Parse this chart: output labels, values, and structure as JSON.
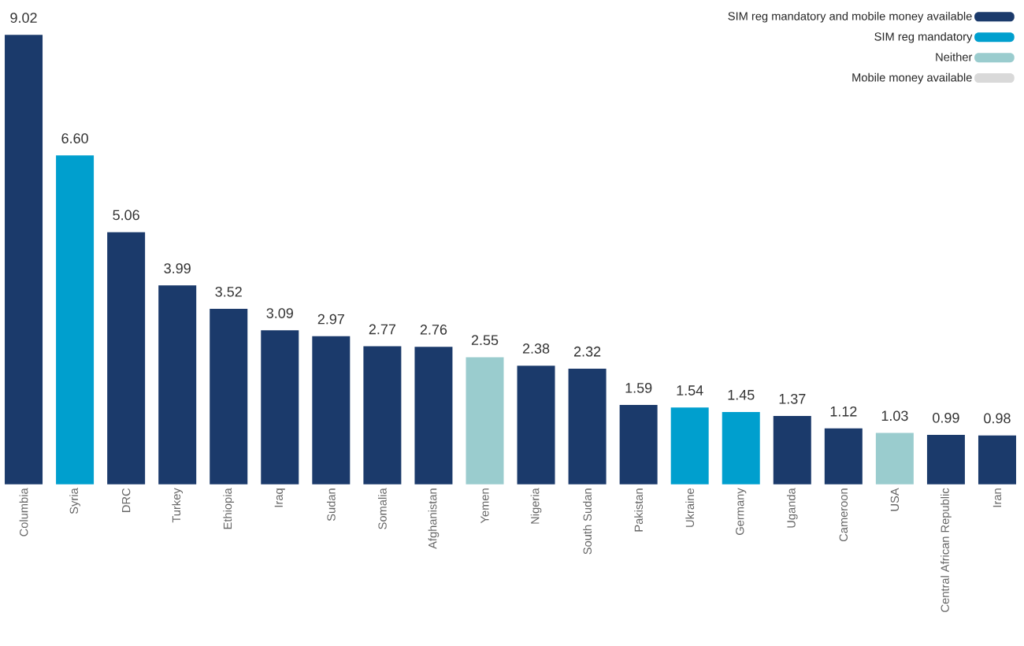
{
  "chart_data": {
    "type": "bar",
    "legend": "top right",
    "data_labels": true,
    "categories": [
      "Columbia",
      "Syria",
      "DRC",
      "Turkey",
      "Ethiopia",
      "Iraq",
      "Sudan",
      "Somalia",
      "Afghanistan",
      "Yemen",
      "Nigeria",
      "South Sudan",
      "Pakistan",
      "Ukraine",
      "Germany",
      "Uganda",
      "Cameroon",
      "USA",
      "Central African Republic",
      "Iran"
    ],
    "series": [
      {
        "name": "SIM reg mandatory and mobile money available",
        "color": "#1b3a6b",
        "values": [
          9.02,
          null,
          5.06,
          3.99,
          3.52,
          3.09,
          2.97,
          2.77,
          2.76,
          null,
          2.38,
          2.32,
          1.59,
          null,
          null,
          1.37,
          1.12,
          null,
          0.99,
          0.98
        ],
        "value_labels": [
          "9.02",
          null,
          "5.06",
          "3.99",
          "3.52",
          "3.09",
          "2.97",
          "2.77",
          "2.76",
          null,
          "2.38",
          "2.32",
          "1.59",
          null,
          null,
          "1.37",
          "1.12",
          null,
          "0.99",
          "0.98"
        ]
      },
      {
        "name": "SIM reg mandatory",
        "color": "#009fce",
        "values": [
          null,
          6.6,
          null,
          null,
          null,
          null,
          null,
          null,
          null,
          null,
          null,
          null,
          null,
          1.54,
          1.45,
          null,
          null,
          null,
          null,
          null
        ],
        "value_labels": [
          null,
          "6.60",
          null,
          null,
          null,
          null,
          null,
          null,
          null,
          null,
          null,
          null,
          null,
          "1.54",
          "1.45",
          null,
          null,
          null,
          null,
          null
        ]
      },
      {
        "name": "Neither",
        "color": "#9accce",
        "values": [
          null,
          null,
          null,
          null,
          null,
          null,
          null,
          null,
          null,
          2.55,
          null,
          null,
          null,
          null,
          null,
          null,
          null,
          1.03,
          null,
          null
        ],
        "value_labels": [
          null,
          null,
          null,
          null,
          null,
          null,
          null,
          null,
          null,
          "2.55",
          null,
          null,
          null,
          null,
          null,
          null,
          null,
          "1.03",
          null,
          null
        ]
      },
      {
        "name": "Mobile money available",
        "color": "#d9d9d9",
        "values": [
          null,
          null,
          null,
          null,
          null,
          null,
          null,
          null,
          null,
          null,
          null,
          null,
          null,
          null,
          null,
          null,
          null,
          null,
          null,
          null
        ]
      }
    ]
  }
}
